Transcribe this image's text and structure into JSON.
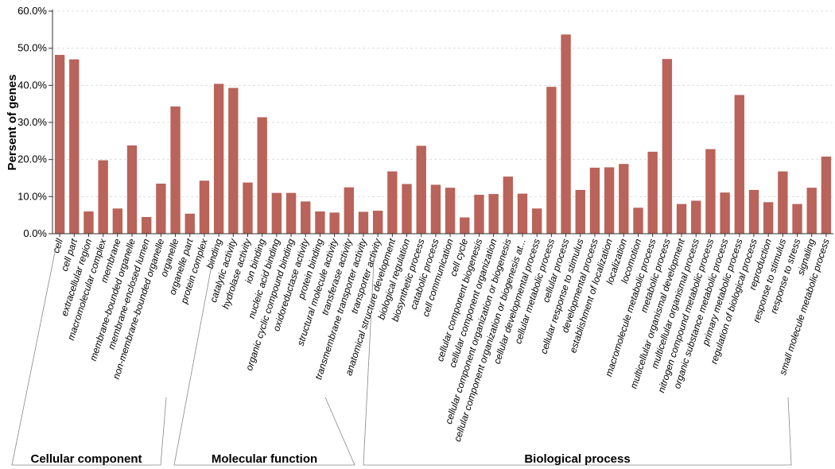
{
  "chart_data": {
    "type": "bar",
    "ylabel": "Persent of genes",
    "ylim": [
      0,
      60
    ],
    "y_ticks": [
      "0.0%",
      "10.0%",
      "20.0%",
      "30.0%",
      "40.0%",
      "50.0%",
      "60.0%"
    ],
    "grid": true,
    "bar_color": "#b9635a",
    "categories": [
      "cell",
      "cell part",
      "extracellular region",
      "macromolecular complex",
      "membrane",
      "membrane-bounded organelle",
      "membrane-enclosed lumen",
      "non-membrane-bounded organelle",
      "organelle",
      "organelle part",
      "protein complex",
      "binding",
      "catalytic activity",
      "hydrolase activity",
      "ion binding",
      "nucleic acid binding",
      "organic cyclic compound binding",
      "oxidoreductase activity",
      "protein binding",
      "structural molecule activity",
      "transferase activity",
      "transmembrane transporter activity",
      "transporter activity",
      "anatomical structure development",
      "biological regulation",
      "biosynthetic process",
      "catabolic process",
      "cell communication",
      "cell cycle",
      "cellular component biogenesis",
      "cellular component organization",
      "cellular component organization or biogenesis",
      "cellular component organization or biogenesis at...",
      "cellular developmental process",
      "cellular metabolic process",
      "cellular process",
      "cellular response to stimulus",
      "developmental process",
      "establishment of localization",
      "localization",
      "locomotion",
      "macromolecule metabolic process",
      "metabolic process",
      "multicellular organismal development",
      "multicellular organismal process",
      "nitrogen compound metabolic process",
      "organic substance metabolic process",
      "primary metabolic process",
      "regulation of biological process",
      "reproduction",
      "response to stimulus",
      "response to stress",
      "signaling",
      "small molecule metabolic process"
    ],
    "values": [
      48.2,
      47.0,
      6.0,
      19.8,
      6.8,
      23.8,
      4.5,
      13.5,
      34.3,
      5.4,
      14.3,
      40.4,
      39.3,
      13.8,
      31.4,
      11.0,
      11.0,
      8.7,
      6.0,
      5.7,
      12.5,
      5.9,
      6.2,
      16.8,
      13.4,
      23.7,
      13.2,
      12.4,
      4.4,
      10.5,
      10.7,
      15.4,
      10.8,
      6.8,
      39.6,
      53.7,
      11.8,
      17.8,
      17.9,
      18.8,
      7.0,
      22.1,
      47.1,
      8.0,
      8.9,
      22.8,
      11.1,
      37.4,
      11.8,
      8.5,
      16.8,
      8.0,
      12.4,
      20.8
    ],
    "groups": [
      {
        "name": "Cellular component",
        "start": 0,
        "end": 10
      },
      {
        "name": "Molecular function",
        "start": 11,
        "end": 21
      },
      {
        "name": "Biological process",
        "start": 22,
        "end": 53
      }
    ]
  }
}
